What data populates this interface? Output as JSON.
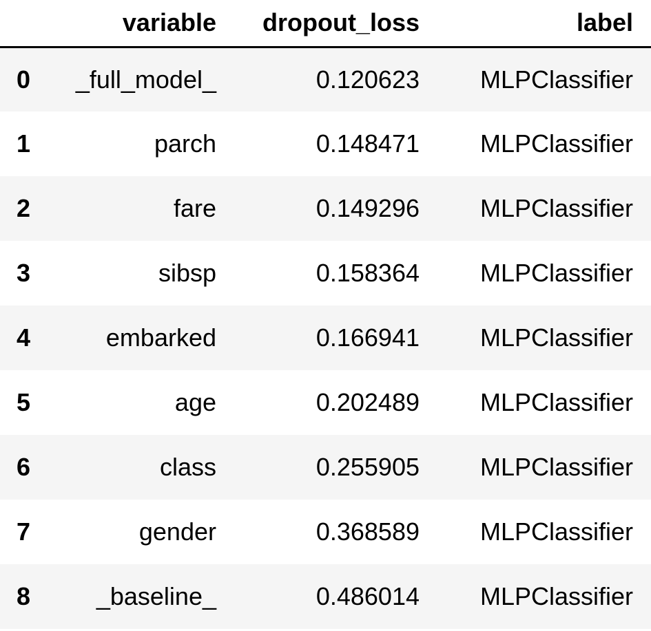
{
  "table": {
    "columns": {
      "index": "",
      "variable": "variable",
      "dropout_loss": "dropout_loss",
      "label": "label"
    },
    "rows": [
      {
        "index": "0",
        "variable": "_full_model_",
        "dropout_loss": "0.120623",
        "label": "MLPClassifier"
      },
      {
        "index": "1",
        "variable": "parch",
        "dropout_loss": "0.148471",
        "label": "MLPClassifier"
      },
      {
        "index": "2",
        "variable": "fare",
        "dropout_loss": "0.149296",
        "label": "MLPClassifier"
      },
      {
        "index": "3",
        "variable": "sibsp",
        "dropout_loss": "0.158364",
        "label": "MLPClassifier"
      },
      {
        "index": "4",
        "variable": "embarked",
        "dropout_loss": "0.166941",
        "label": "MLPClassifier"
      },
      {
        "index": "5",
        "variable": "age",
        "dropout_loss": "0.202489",
        "label": "MLPClassifier"
      },
      {
        "index": "6",
        "variable": "class",
        "dropout_loss": "0.255905",
        "label": "MLPClassifier"
      },
      {
        "index": "7",
        "variable": "gender",
        "dropout_loss": "0.368589",
        "label": "MLPClassifier"
      },
      {
        "index": "8",
        "variable": "_baseline_",
        "dropout_loss": "0.486014",
        "label": "MLPClassifier"
      }
    ]
  },
  "colors": {
    "stripe": "#f5f5f5",
    "background": "#ffffff",
    "header_rule": "#000000",
    "text": "#000000"
  }
}
